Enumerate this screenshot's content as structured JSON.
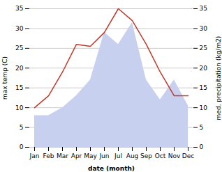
{
  "chart_data": {
    "type": "line",
    "xlabel": "date (month)",
    "ylabel": "max temp (C)",
    "y2label": "med. precipitation (kg/m2)",
    "categories": [
      "Jan",
      "Feb",
      "Mar",
      "Apr",
      "May",
      "Jun",
      "Jul",
      "Aug",
      "Sep",
      "Oct",
      "Nov",
      "Dec"
    ],
    "series": [
      {
        "type": "area",
        "axis": "y2",
        "color": "#c8d0f0",
        "values": [
          8,
          8,
          10,
          13,
          17,
          29,
          26,
          31.5,
          17,
          12,
          17,
          10.5
        ]
      },
      {
        "type": "line",
        "color": "#c0392b",
        "values": [
          10,
          13,
          19,
          26,
          25.5,
          29,
          35,
          32,
          26,
          19,
          13,
          13
        ]
      }
    ],
    "ylim": [
      0,
      35
    ],
    "yticks": [
      0,
      5,
      10,
      15,
      20,
      25,
      30,
      35
    ],
    "y2lim": [
      0,
      35
    ],
    "y2ticks": [
      0,
      5,
      10,
      15,
      20,
      25,
      30,
      35
    ],
    "grid": true
  }
}
